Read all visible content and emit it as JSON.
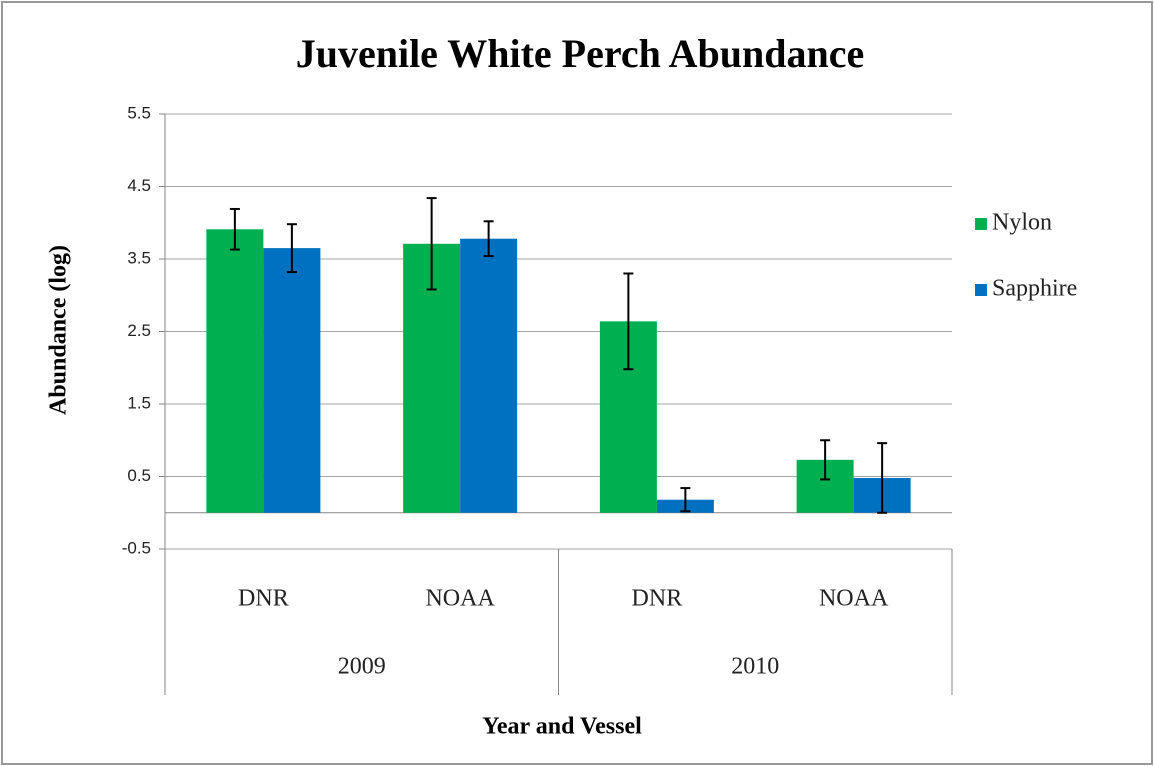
{
  "chart_data": {
    "type": "bar",
    "title": "Juvenile White Perch Abundance",
    "x_label": "Year and Vessel",
    "y_label": "Abundance (log)",
    "categories": [
      "DNR",
      "NOAA",
      "DNR",
      "NOAA"
    ],
    "groups": [
      "2009",
      "2010"
    ],
    "series": [
      {
        "name": "Nylon",
        "color": "#00b050",
        "values": [
          3.91,
          3.71,
          2.64,
          0.73
        ],
        "errors": [
          0.28,
          0.63,
          0.66,
          0.27
        ]
      },
      {
        "name": "Sapphire",
        "color": "#0070c0",
        "values": [
          3.65,
          3.78,
          0.18,
          0.48
        ],
        "errors": [
          0.33,
          0.24,
          0.16,
          0.48
        ]
      }
    ],
    "ylim": [
      -0.5,
      5.5
    ],
    "yticks": [
      -0.5,
      0.5,
      1.5,
      2.5,
      3.5,
      4.5,
      5.5
    ],
    "grid": true,
    "legend": "right"
  }
}
